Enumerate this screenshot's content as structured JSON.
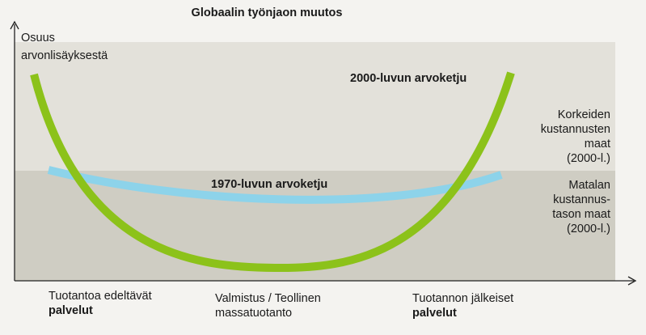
{
  "title": "Globaalin työnjaon muutos",
  "y_axis_label": [
    "Osuus",
    "arvonlisäyksestä"
  ],
  "curves": {
    "curve_2000": {
      "label": "2000-luvun arvoketju",
      "color": "#8cc21a"
    },
    "curve_1970": {
      "label": "1970-luvun arvoketju",
      "color": "#8dd3ea"
    }
  },
  "bands": {
    "high_cost": {
      "label": [
        "Korkeiden",
        "kustannusten",
        "maat",
        "(2000-l.)"
      ],
      "color": "#e3e1da"
    },
    "low_cost": {
      "label": [
        "Matalan",
        "kustannus-",
        "tason maat",
        "(2000-l.)"
      ],
      "color": "#cfcdc3"
    }
  },
  "x_axis": {
    "left": {
      "line1": "Tuotantoa edeltävät",
      "line2": "palvelut"
    },
    "middle": {
      "line1": "Valmistus / Teollinen",
      "line2": "massatuotanto"
    },
    "right": {
      "line1": "Tuotannon jälkeiset",
      "line2": "palvelut"
    }
  }
}
